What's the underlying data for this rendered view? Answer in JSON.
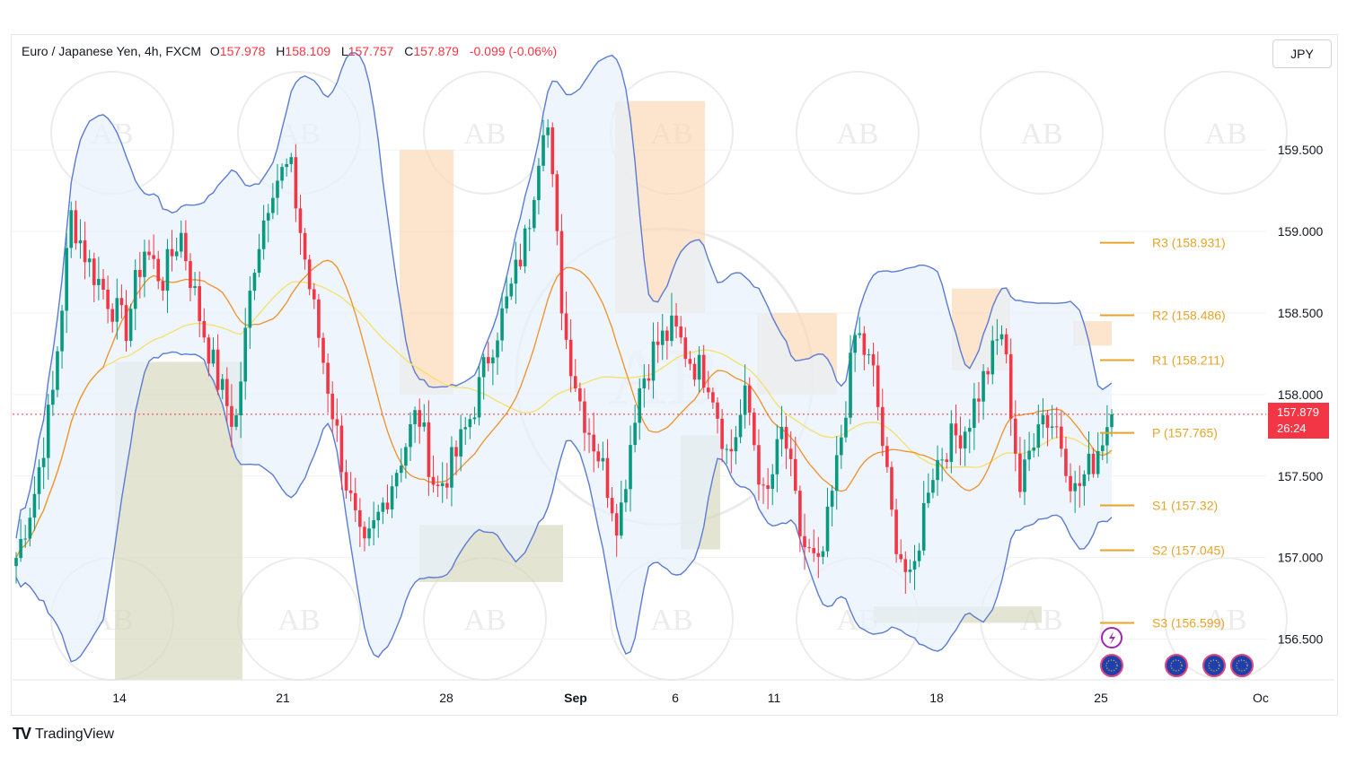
{
  "header": {
    "symbol": "Euro / Japanese Yen, 4h, FXCM",
    "open_label": "O",
    "open": "157.978",
    "high_label": "H",
    "high": "158.109",
    "low_label": "L",
    "low": "157.757",
    "close_label": "C",
    "close": "157.879",
    "change": "-0.099 (-0.06%)"
  },
  "currency": "JPY",
  "price_tag": {
    "price": "157.879",
    "countdown": "26:24"
  },
  "footer": {
    "logo": "TV",
    "brand": "TradingView"
  },
  "watermark": "AB",
  "colors": {
    "up": "#089981",
    "down": "#f23645",
    "band": "#5b7bd5",
    "band_fill": "#e8f1fb",
    "ema_fast": "#f0902a",
    "ema_slow": "#f5e06a",
    "pivot": "#e5a52a",
    "supply_zone": "#fbd9b8",
    "demand_zone": "#d8d8bf",
    "current_price_line": "#f23645"
  },
  "chart_data": {
    "type": "candlestick",
    "title": "Euro / Japanese Yen, 4h, FXCM",
    "y_axis": {
      "ticks": [
        156.5,
        157.0,
        157.5,
        158.0,
        158.5,
        159.0,
        159.5
      ],
      "labels": [
        "156.500",
        "157.000",
        "157.500",
        "158.000",
        "158.500",
        "159.000",
        "159.500"
      ],
      "range": [
        156.25,
        160.2
      ]
    },
    "x_axis": {
      "labels": [
        "14",
        "21",
        "28",
        "Sep",
        "6",
        "11",
        "18",
        "25",
        "Oc"
      ]
    },
    "current_price": 157.879,
    "pivot_levels": [
      {
        "label": "R3 (158.931)",
        "value": 158.931
      },
      {
        "label": "R2 (158.486)",
        "value": 158.486
      },
      {
        "label": "R1 (158.211)",
        "value": 158.211
      },
      {
        "label": "P (157.765)",
        "value": 157.765
      },
      {
        "label": "S1 (157.32)",
        "value": 157.32
      },
      {
        "label": "S2 (157.045)",
        "value": 157.045
      },
      {
        "label": "S3 (156.599)",
        "value": 156.599
      }
    ],
    "price_path": [
      157.0,
      157.4,
      158.0,
      159.1,
      158.8,
      158.6,
      158.4,
      158.9,
      158.7,
      159.0,
      158.5,
      158.1,
      157.8,
      158.8,
      159.3,
      159.4,
      158.7,
      158.1,
      157.5,
      157.0,
      157.3,
      157.6,
      157.9,
      157.4,
      157.6,
      157.9,
      158.3,
      158.6,
      159.0,
      159.8,
      158.4,
      157.9,
      157.6,
      157.2,
      158.0,
      158.3,
      158.4,
      158.2,
      158.1,
      157.6,
      158.0,
      157.3,
      157.8,
      157.1,
      156.9,
      157.6,
      158.4,
      158.1,
      157.2,
      156.8,
      157.5,
      157.7,
      157.8,
      158.1,
      158.4,
      157.4,
      157.9,
      157.8,
      157.4,
      157.6,
      157.9
    ]
  }
}
